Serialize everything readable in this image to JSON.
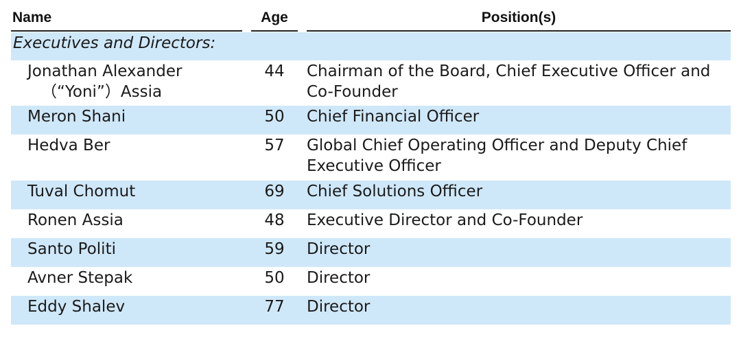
{
  "header": {
    "name": "Name",
    "age": "Age",
    "position": "Position(s)"
  },
  "section": {
    "label": "Executives and Directors:"
  },
  "rows": [
    {
      "name": "Jonathan Alexander",
      "name_line2": "（“Yoni”）Assia",
      "age": "44",
      "position": "Chairman of the Board, Chief Executive Officer and Co-Founder"
    },
    {
      "name": "Meron Shani",
      "age": "50",
      "position": "Chief Financial Officer"
    },
    {
      "name": "Hedva Ber",
      "age": "57",
      "position": "Global Chief Operating Officer and Deputy Chief Executive Officer"
    },
    {
      "name": "Tuval Chomut",
      "age": "69",
      "position": "Chief Solutions Officer"
    },
    {
      "name": "Ronen Assia",
      "age": "48",
      "position": "Executive Director and Co-Founder"
    },
    {
      "name": "Santo Politi",
      "age": "59",
      "position": "Director"
    },
    {
      "name": "Avner Stepak",
      "age": "50",
      "position": "Director"
    },
    {
      "name": "Eddy Shalev",
      "age": "77",
      "position": "Director"
    }
  ],
  "colors": {
    "row_shade": "#cfe8f9",
    "rule": "#222222"
  }
}
